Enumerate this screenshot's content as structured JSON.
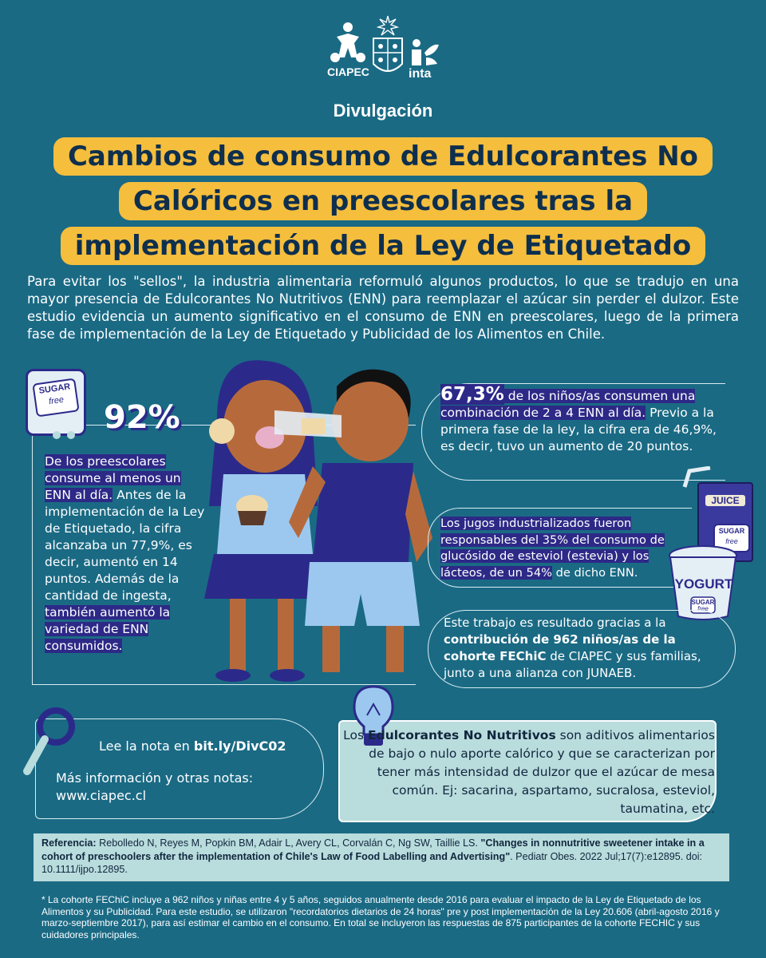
{
  "logos": {
    "ciapec_label": "CIAPEC",
    "inta_label": "inta"
  },
  "header": {
    "section": "Divulgación"
  },
  "title": {
    "line1": "Cambios de consumo de Edulcorantes No",
    "line2": "Calóricos en preescolares tras la",
    "line3": "implementación de la Ley de Etiquetado"
  },
  "intro": "Para evitar los \"sellos\", la industria alimentaria reformuló algunos productos, lo que se tradujo en una mayor presencia de Edulcorantes No Nutritivos (ENN) para reemplazar el azúcar sin perder el dulzor. Este estudio evidencia un aumento significativo en el consumo de ENN en preescolares, luego de la primera fase de implementación de la Ley de Etiquetado y Publicidad de los Alimentos en Chile.",
  "left_panel": {
    "sticker": {
      "line1": "SUGAR",
      "line2": "free"
    },
    "stat": "92%",
    "highlight": "De los preescolares consume al menos un ENN al día.",
    "text": " Antes de la implementación de la Ley de Etiquetado, la cifra alcanzaba un 77,9%, es decir, aumentó en 14 puntos. Además de la cantidad de ingesta, ",
    "highlight2": "también aumentó la variedad de ENN consumidos."
  },
  "right_panel_1": {
    "stat": "67,3%",
    "highlight": " de los niños/as consumen una combinación de 2 a 4 ENN al día.",
    "text": " Previo a la primera fase de la ley, la cifra era de 46,9%, es decir, tuvo un aumento de 20 puntos."
  },
  "right_panel_2": {
    "highlight": "Los jugos industrializados fueron responsables del 35% del consumo de glucósido de esteviol (estevia) y los lácteos, de un 54%",
    "text": " de dicho ENN."
  },
  "right_panel_3": {
    "text1": "Este trabajo es resultado gracias a la ",
    "bold": "contribución de 962 niños/as de la cohorte FEChiC",
    "text2": " de CIAPEC y sus familias, junto a una alianza con JUNAEB."
  },
  "products": {
    "juice_label": "JUICE",
    "sugar": "SUGAR",
    "free": "free",
    "yogurt_label": "YOGURT"
  },
  "links": {
    "lee_text": "Lee la nota en ",
    "lee_link": "bit.ly/DivC02",
    "mas_info": "Más información y otras notas:",
    "website": "www.ciapec.cl"
  },
  "definition": {
    "text1": "Los ",
    "bold": "Edulcorantes No Nutritivos",
    "text2": " son aditivos alimentarios de bajo o nulo aporte calórico y que se caracterizan por tener más intensidad de dulzor que el azúcar de mesa común. Ej: sacarina, aspartamo, sucralosa, esteviol, taumatina, etc."
  },
  "reference": {
    "label": "Referencia:",
    "authors": " Rebolledo N, Reyes M, Popkin BM, Adair L, Avery CL, Corvalán C, Ng SW, Taillie LS. ",
    "title": "\"Changes in nonnutritive sweetener intake in a cohort of preschoolers after the implementation of Chile's Law of Food Labelling and Advertising\"",
    "journal": ". Pediatr Obes. 2022 Jul;17(7):e12895. doi: 10.1111/ijpo.12895."
  },
  "footnote": "* La cohorte FEChiC incluye a 962 niños y niñas entre 4 y 5 años, seguidos anualmente desde 2016 para evaluar el impacto de la Ley de Etiquetado de los Alimentos y su Publicidad. Para este estudio, se utilizaron \"recordatorios dietarios de 24 horas\" pre y post implementación de la Ley 20.606 (abril-agosto 2016 y marzo-septiembre 2017), para así estimar el cambio en el consumo. En total se incluyeron las respuestas de 875 participantes de la cohorte FECHIC y sus cuidadores principales.",
  "colors": {
    "background": "#1a6a84",
    "title_bg": "#f5be3d",
    "highlight": "#2d2987",
    "info_bg": "#b9dcdd"
  }
}
